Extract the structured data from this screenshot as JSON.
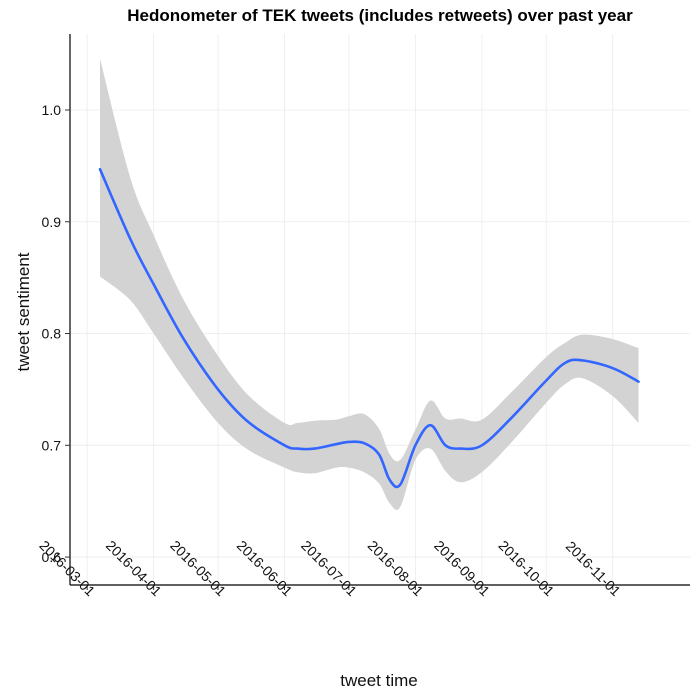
{
  "chart_data": {
    "type": "line",
    "title": "Hedonometer of TEK tweets (includes retweets) over past year",
    "xlabel": "tweet time",
    "ylabel": "tweet sentiment",
    "x_ticks": [
      "2016-03-01",
      "2016-04-01",
      "2016-05-01",
      "2016-06-01",
      "2016-07-01",
      "2016-08-01",
      "2016-09-01",
      "2016-10-01",
      "2016-11-01"
    ],
    "y_ticks": [
      0.6,
      0.7,
      0.8,
      0.9,
      1.0
    ],
    "y_tick_labels": [
      "0.6",
      "0.7",
      "0.8",
      "0.9",
      "1.0"
    ],
    "xlim": [
      "2016-02-22",
      "2016-12-07"
    ],
    "ylim": [
      0.575,
      1.068
    ],
    "grid": true,
    "line_color": "#3366FF",
    "band_color": "#D3D3D3",
    "series": [
      {
        "x": [
          "2016-03-07",
          "2016-03-21",
          "2016-04-01",
          "2016-04-15",
          "2016-05-01",
          "2016-05-15",
          "2016-06-01",
          "2016-06-07",
          "2016-06-15",
          "2016-06-25",
          "2016-07-01",
          "2016-07-08",
          "2016-07-15",
          "2016-07-20",
          "2016-07-25",
          "2016-08-01",
          "2016-08-08",
          "2016-08-15",
          "2016-08-22",
          "2016-09-01",
          "2016-09-15",
          "2016-10-01",
          "2016-10-10",
          "2016-10-18",
          "2016-11-01",
          "2016-11-13"
        ],
        "y": [
          0.947,
          0.885,
          0.844,
          0.795,
          0.75,
          0.721,
          0.7,
          0.697,
          0.697,
          0.701,
          0.703,
          0.702,
          0.692,
          0.669,
          0.665,
          0.7,
          0.718,
          0.7,
          0.697,
          0.7,
          0.725,
          0.758,
          0.774,
          0.776,
          0.769,
          0.757
        ],
        "ymin": [
          0.851,
          0.83,
          0.8,
          0.76,
          0.72,
          0.696,
          0.68,
          0.676,
          0.675,
          0.68,
          0.68,
          0.676,
          0.666,
          0.648,
          0.645,
          0.687,
          0.697,
          0.677,
          0.667,
          0.676,
          0.703,
          0.738,
          0.755,
          0.76,
          0.744,
          0.72
        ],
        "ymax": [
          1.046,
          0.94,
          0.888,
          0.83,
          0.78,
          0.745,
          0.72,
          0.72,
          0.722,
          0.723,
          0.726,
          0.728,
          0.715,
          0.692,
          0.687,
          0.714,
          0.74,
          0.724,
          0.724,
          0.723,
          0.748,
          0.779,
          0.792,
          0.799,
          0.795,
          0.787
        ]
      }
    ]
  }
}
